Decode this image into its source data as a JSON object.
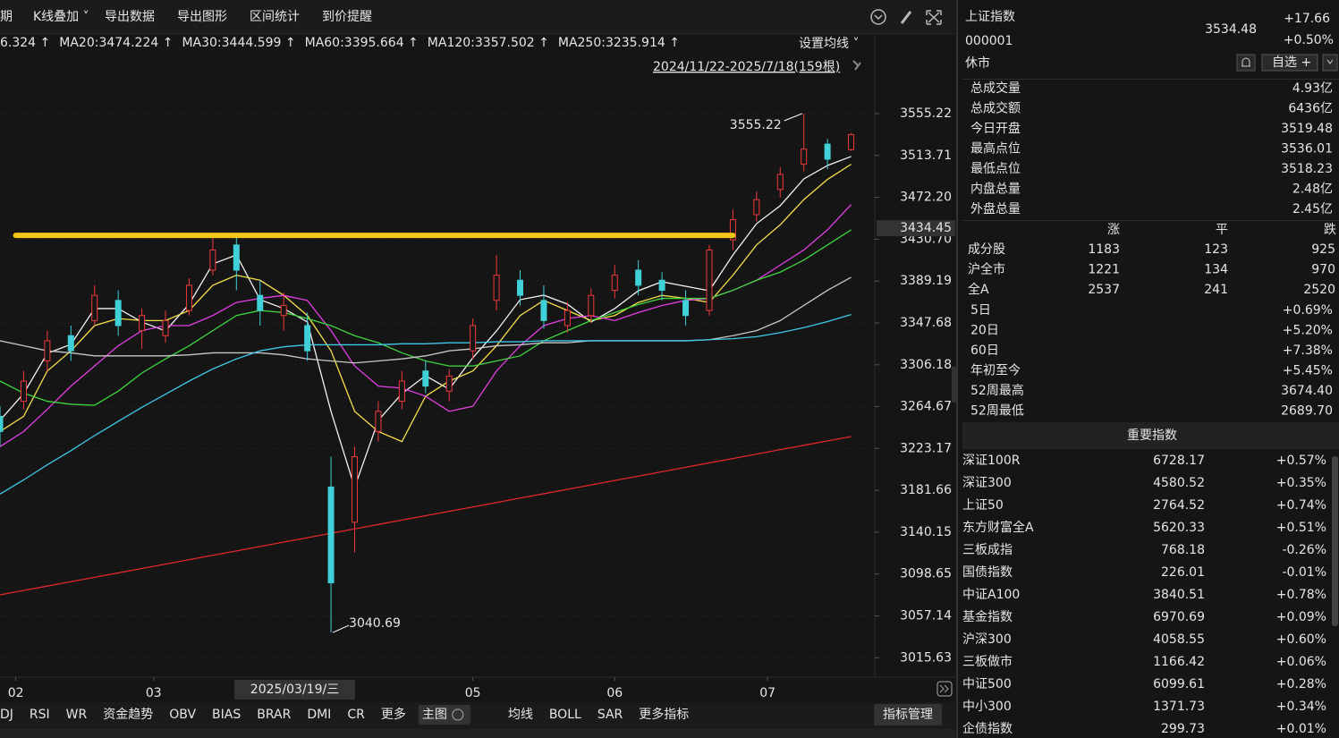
{
  "toolbar": [
    "期",
    "K线叠加 ˅",
    "导出数据",
    "导出图形",
    "区间统计",
    "到价提醒"
  ],
  "ma_settings": "设置均线 ˅",
  "range_label": "2024/11/22-2025/7/18(159根)",
  "chart_data": {
    "type": "candlestick",
    "up_color": "#f0393b",
    "down_color": "#3fd0d8",
    "x": [
      0,
      3,
      6,
      9,
      12,
      15,
      18,
      21,
      24,
      27,
      30,
      33,
      36,
      39,
      42,
      45,
      48,
      51,
      54,
      57,
      60,
      63,
      66,
      69,
      72,
      75,
      78,
      81,
      84,
      87,
      90,
      93,
      96,
      99,
      102,
      105,
      108
    ],
    "open": [
      3255,
      3270,
      3310,
      3335,
      3350,
      3370,
      3340,
      3335,
      3360,
      3400,
      3425,
      3375,
      3355,
      3345,
      3185,
      3150,
      3240,
      3270,
      3300,
      3280,
      3320,
      3370,
      3390,
      3370,
      3345,
      3355,
      3380,
      3400,
      3390,
      3370,
      3360,
      3430,
      3455,
      3480,
      3505,
      3525,
      3519.48
    ],
    "high": [
      3265,
      3300,
      3340,
      3345,
      3385,
      3380,
      3362,
      3360,
      3392,
      3432,
      3435,
      3390,
      3378,
      3358,
      3215,
      3225,
      3270,
      3300,
      3310,
      3302,
      3352,
      3415,
      3400,
      3385,
      3368,
      3382,
      3405,
      3410,
      3398,
      3380,
      3425,
      3460,
      3478,
      3502,
      3555.22,
      3530,
      3536.01
    ],
    "low": [
      3225,
      3262,
      3300,
      3310,
      3345,
      3335,
      3322,
      3328,
      3355,
      3395,
      3380,
      3345,
      3340,
      3310,
      3040.69,
      3120,
      3230,
      3262,
      3278,
      3270,
      3312,
      3360,
      3365,
      3342,
      3338,
      3348,
      3372,
      3375,
      3370,
      3345,
      3355,
      3420,
      3448,
      3472,
      3498,
      3500,
      3518.23
    ],
    "close": [
      3240,
      3290,
      3330,
      3320,
      3375,
      3345,
      3355,
      3350,
      3385,
      3420,
      3400,
      3360,
      3365,
      3320,
      3090,
      3215,
      3260,
      3290,
      3285,
      3295,
      3345,
      3395,
      3375,
      3350,
      3360,
      3375,
      3395,
      3385,
      3380,
      3355,
      3420,
      3450,
      3470,
      3495,
      3520,
      3510,
      3534.48
    ],
    "high_label": "3555.22",
    "low_label": "3040.69",
    "series": [
      {
        "color": "#f2f2f2",
        "values": [
          3251.0,
          3277.6,
          3317.5,
          3326.4,
          3361.9,
          3361.9,
          3348.6,
          3339.7,
          3366.3,
          3406.2,
          3415.1,
          3370.7,
          3361.9,
          3348.6,
          3259.9,
          3184.5,
          3251.0,
          3277.6,
          3295.3,
          3282.0,
          3313.1,
          3339.7,
          3370.7,
          3375.2,
          3366.3,
          3348.6,
          3361.9,
          3379.6,
          3388.5,
          3384.0,
          3379.6,
          3415.1,
          3446.1,
          3463.9,
          3490.5,
          3503.8,
          3512.7
        ]
      },
      {
        "name": "6.324 ↑",
        "color": "#f5e04a",
        "values": [
          3240,
          3255,
          3300,
          3320,
          3345,
          3352,
          3350,
          3350,
          3360,
          3385,
          3395,
          3390,
          3375,
          3355,
          3320,
          3260,
          3240,
          3230,
          3275,
          3290,
          3300,
          3325,
          3355,
          3370,
          3360,
          3350,
          3355,
          3368,
          3375,
          3372,
          3368,
          3395,
          3425,
          3445,
          3470,
          3490,
          3505
        ]
      },
      {
        "name": "MA20:3474.224 ↑",
        "color": "#e23ee2",
        "values": [
          3225,
          3240,
          3262,
          3285,
          3305,
          3325,
          3340,
          3345,
          3345,
          3355,
          3368,
          3372,
          3375,
          3370,
          3340,
          3305,
          3285,
          3283,
          3275,
          3260,
          3265,
          3300,
          3325,
          3345,
          3352,
          3355,
          3350,
          3358,
          3365,
          3370,
          3372,
          3380,
          3390,
          3405,
          3420,
          3440,
          3465
        ]
      },
      {
        "name": "MA30:3444.599 ↑",
        "color": "#3ed63e",
        "values": [
          3290,
          3278,
          3270,
          3267,
          3266,
          3280,
          3298,
          3312,
          3325,
          3340,
          3355,
          3360,
          3358,
          3352,
          3345,
          3335,
          3328,
          3318,
          3310,
          3305,
          3305,
          3310,
          3315,
          3330,
          3340,
          3350,
          3358,
          3366,
          3372,
          3372,
          3372,
          3380,
          3390,
          3398,
          3410,
          3425,
          3440
        ]
      },
      {
        "name": "MA60:3395.664 ↑",
        "color": "#c8c8c8",
        "values": [
          3330,
          3325,
          3320,
          3318,
          3315,
          3315,
          3315,
          3315,
          3316,
          3318,
          3318,
          3318,
          3316,
          3312,
          3310,
          3308,
          3310,
          3312,
          3315,
          3320,
          3322,
          3325,
          3326,
          3328,
          3328,
          3330,
          3330,
          3330,
          3330,
          3330,
          3331,
          3335,
          3340,
          3350,
          3365,
          3380,
          3393
        ]
      },
      {
        "name": "MA120:3357.502 ↑",
        "color": "#3fc8e8",
        "values": [
          3178,
          3192,
          3207,
          3221,
          3236,
          3250,
          3264,
          3277,
          3290,
          3302,
          3312,
          3320,
          3324,
          3326,
          3326,
          3326,
          3326,
          3327,
          3327,
          3328,
          3328,
          3329,
          3329,
          3330,
          3330,
          3330,
          3330,
          3330,
          3330,
          3330,
          3331,
          3332,
          3334,
          3338,
          3343,
          3349,
          3356
        ]
      },
      {
        "name": "MA250:3235.914 ↑",
        "color": "#e02828",
        "values": [
          3078.0,
          3082.4,
          3086.7,
          3091.1,
          3095.4,
          3099.8,
          3104.2,
          3108.5,
          3112.9,
          3117.3,
          3121.6,
          3126.0,
          3130.3,
          3134.7,
          3139.1,
          3143.4,
          3147.8,
          3152.2,
          3156.5,
          3160.9,
          3165.2,
          3169.6,
          3174.0,
          3178.3,
          3182.7,
          3187.0,
          3191.4,
          3195.8,
          3200.1,
          3204.5,
          3208.9,
          3213.2,
          3217.6,
          3222.0,
          3226.3,
          3230.7,
          3235.0
        ]
      }
    ],
    "hline": {
      "value": 3434.45,
      "color": "#f5c518",
      "from": 2,
      "to": 93
    },
    "xlim": [
      0,
      111
    ],
    "xticks": [
      {
        "value": 2,
        "label": "02"
      },
      {
        "value": 19.5,
        "label": "03"
      },
      {
        "value": 60,
        "label": "05"
      },
      {
        "value": 78,
        "label": "06"
      },
      {
        "value": 97.4,
        "label": "07"
      }
    ],
    "crosshair_label": "2025/03/19/三",
    "ylim": [
      2996.4,
      3632.4
    ],
    "yticks": [
      3555.22,
      3513.71,
      {
        "value": 3472.2,
        "label": "3472.20"
      },
      {
        "value": 3430.7,
        "label": "3430.70"
      },
      3389.19,
      3347.68,
      3306.18,
      3264.67,
      3223.17,
      3181.66,
      3140.15,
      3098.65,
      3057.14,
      3015.63
    ],
    "grid": true
  },
  "indicator_tabs": [
    "DJ",
    "RSI",
    "WR",
    "资金趋势",
    "OBV",
    "BIAS",
    "BRAR",
    "DMI",
    "CR",
    "更多",
    "主图",
    "均线",
    "BOLL",
    "SAR",
    "更多指标"
  ],
  "indicator_manage": "指标管理",
  "quote": {
    "name": "上证指数",
    "code": "000001",
    "status": "休市",
    "price": "3534.48",
    "change": "+17.66",
    "change_pct": "+0.50%",
    "watch": "自选 +",
    "stats": [
      {
        "label": "总成交量",
        "value": "4.93亿",
        "color": "#e6e6e6"
      },
      {
        "label": "总成交额",
        "value": "6436亿",
        "color": "#3fc8e8"
      },
      {
        "label": "今日开盘",
        "value": "3519.48",
        "color": "#f0393b"
      },
      {
        "label": "最高点位",
        "value": "3536.01",
        "color": "#f0393b"
      },
      {
        "label": "最低点位",
        "value": "3518.23",
        "color": "#f0393b"
      },
      {
        "label": "内盘总量",
        "value": "2.48亿",
        "color": "#3bd13b"
      },
      {
        "label": "外盘总量",
        "value": "2.45亿",
        "color": "#f0393b"
      }
    ],
    "breadth_header": [
      "涨",
      "平",
      "跌"
    ],
    "breadth": [
      {
        "label": "成分股",
        "up": "1183",
        "flat": "123",
        "down": "925"
      },
      {
        "label": "沪全市",
        "up": "1221",
        "flat": "134",
        "down": "970"
      },
      {
        "label": "全A",
        "up": "2537",
        "flat": "241",
        "down": "2520"
      }
    ],
    "returns": [
      {
        "label": "5日",
        "value": "+0.69%",
        "color": "#f0393b"
      },
      {
        "label": "20日",
        "value": "+5.20%",
        "color": "#f0393b"
      },
      {
        "label": "60日",
        "value": "+7.38%",
        "color": "#f0393b"
      },
      {
        "label": "年初至今",
        "value": "+5.45%",
        "color": "#f0393b"
      },
      {
        "label": "52周最高",
        "value": "3674.40",
        "color": "#f0393b"
      },
      {
        "label": "52周最低",
        "value": "2689.70",
        "color": "#3bd13b"
      }
    ],
    "indices_title": "重要指数",
    "indices": [
      {
        "name": "深证100R",
        "value": "6728.17",
        "change": "+0.57%"
      },
      {
        "name": "深证300",
        "value": "4580.52",
        "change": "+0.35%"
      },
      {
        "name": "上证50",
        "value": "2764.52",
        "change": "+0.74%"
      },
      {
        "name": "东方财富全A",
        "value": "5620.33",
        "change": "+0.51%"
      },
      {
        "name": "三板成指",
        "value": "768.18",
        "change": "-0.26%"
      },
      {
        "name": "国债指数",
        "value": "226.01",
        "change": "-0.01%"
      },
      {
        "name": "中证A100",
        "value": "3840.51",
        "change": "+0.78%"
      },
      {
        "name": "基金指数",
        "value": "6970.69",
        "change": "+0.09%"
      },
      {
        "name": "沪深300",
        "value": "4058.55",
        "change": "+0.60%"
      },
      {
        "name": "三板做市",
        "value": "1166.42",
        "change": "+0.06%"
      },
      {
        "name": "中证500",
        "value": "6099.61",
        "change": "+0.28%"
      },
      {
        "name": "中小300",
        "value": "1371.73",
        "change": "+0.34%"
      },
      {
        "name": "企债指数",
        "value": "299.73",
        "change": "+0.01%"
      }
    ]
  }
}
